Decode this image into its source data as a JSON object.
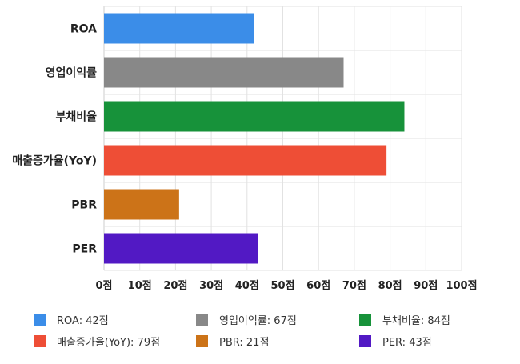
{
  "chart_data": {
    "type": "bar",
    "orientation": "horizontal",
    "categories": [
      "ROA",
      "영업이익률",
      "부채비율",
      "매출증가율(YoY)",
      "PBR",
      "PER"
    ],
    "values": [
      42,
      67,
      84,
      79,
      21,
      43
    ],
    "colors": [
      "#3b8de8",
      "#888888",
      "#17923a",
      "#ee4e36",
      "#cc7318",
      "#5219c4"
    ],
    "xlim": [
      0,
      100
    ],
    "ticks": [
      0,
      10,
      20,
      30,
      40,
      50,
      60,
      70,
      80,
      90,
      100
    ],
    "tick_labels": [
      "0점",
      "10점",
      "20점",
      "30점",
      "40점",
      "50점",
      "60점",
      "70점",
      "80점",
      "90점",
      "100점"
    ],
    "grid": true,
    "legend_position": "bottom",
    "legend": [
      "ROA: 42점",
      "영업이익률: 67점",
      "부채비율: 84점",
      "매출증가율(YoY): 79점",
      "PBR: 21점",
      "PER: 43점"
    ]
  }
}
